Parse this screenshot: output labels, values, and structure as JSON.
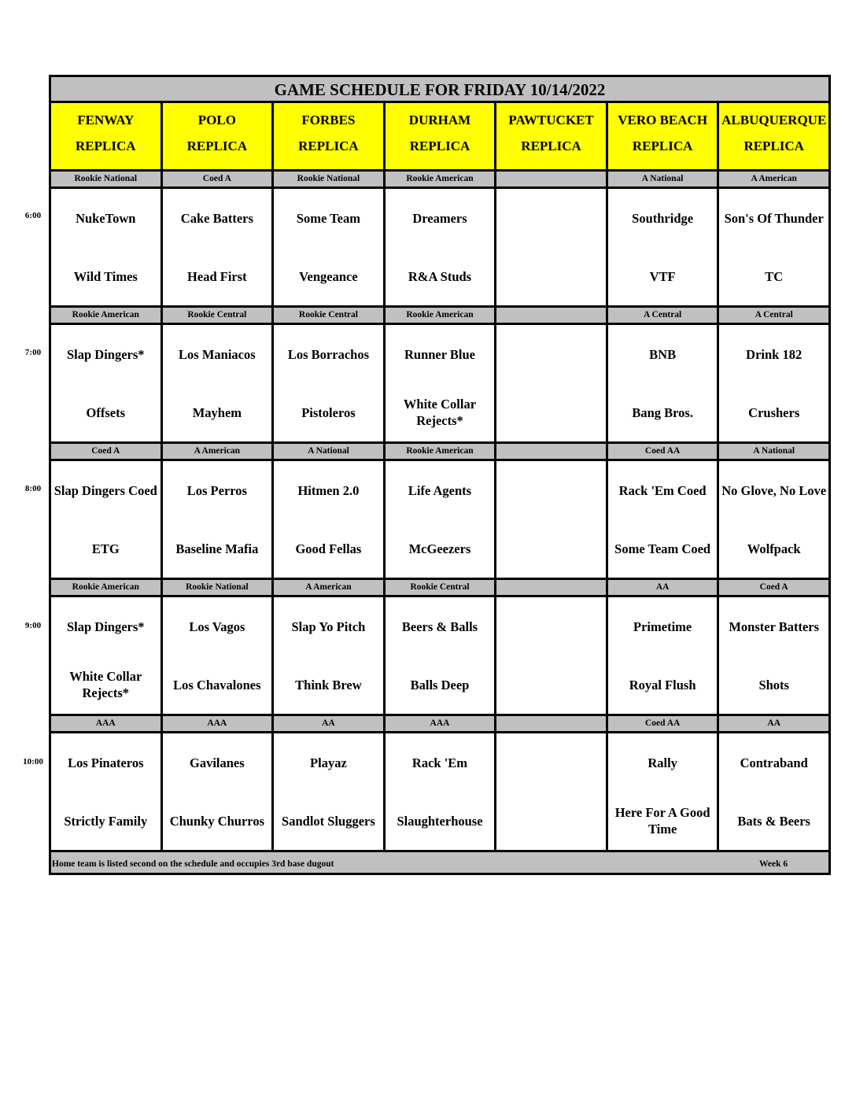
{
  "title": "GAME SCHEDULE FOR FRIDAY 10/14/2022",
  "fields": [
    {
      "name": "FENWAY",
      "sub": "REPLICA"
    },
    {
      "name": "POLO",
      "sub": "REPLICA"
    },
    {
      "name": "FORBES",
      "sub": "REPLICA"
    },
    {
      "name": "DURHAM",
      "sub": "REPLICA"
    },
    {
      "name": "PAWTUCKET",
      "sub": "REPLICA"
    },
    {
      "name": "VERO BEACH",
      "sub": "REPLICA"
    },
    {
      "name": "ALBUQUERQUE",
      "sub": "REPLICA"
    }
  ],
  "slots": [
    {
      "time": "6:00",
      "divisions": [
        "Rookie National",
        "Coed A",
        "Rookie National",
        "Rookie American",
        "",
        "A National",
        "A American"
      ],
      "games": [
        [
          "NukeTown",
          "Wild Times"
        ],
        [
          "Cake Batters",
          "Head First"
        ],
        [
          "Some Team",
          "Vengeance"
        ],
        [
          "Dreamers",
          "R&A Studs"
        ],
        [
          "",
          ""
        ],
        [
          "Southridge",
          "VTF"
        ],
        [
          "Son's Of Thunder",
          "TC"
        ]
      ]
    },
    {
      "time": "7:00",
      "divisions": [
        "Rookie American",
        "Rookie Central",
        "Rookie Central",
        "Rookie American",
        "",
        "A Central",
        "A Central"
      ],
      "games": [
        [
          "Slap Dingers*",
          "Offsets"
        ],
        [
          "Los Maniacos",
          "Mayhem"
        ],
        [
          "Los Borrachos",
          "Pistoleros"
        ],
        [
          "Runner Blue",
          "White Collar Rejects*"
        ],
        [
          "",
          ""
        ],
        [
          "BNB",
          "Bang Bros."
        ],
        [
          "Drink 182",
          "Crushers"
        ]
      ]
    },
    {
      "time": "8:00",
      "divisions": [
        "Coed A",
        "A American",
        "A National",
        "Rookie American",
        "",
        "Coed AA",
        "A National"
      ],
      "games": [
        [
          "Slap Dingers Coed",
          "ETG"
        ],
        [
          "Los Perros",
          "Baseline Mafia"
        ],
        [
          "Hitmen 2.0",
          "Good Fellas"
        ],
        [
          "Life Agents",
          "McGeezers"
        ],
        [
          "",
          ""
        ],
        [
          "Rack 'Em Coed",
          "Some Team Coed"
        ],
        [
          "No Glove, No Love",
          "Wolfpack"
        ]
      ]
    },
    {
      "time": "9:00",
      "divisions": [
        "Rookie American",
        "Rookie National",
        "A American",
        "Rookie Central",
        "",
        "AA",
        "Coed A"
      ],
      "games": [
        [
          "Slap Dingers*",
          "White Collar Rejects*"
        ],
        [
          "Los Vagos",
          "Los Chavalones"
        ],
        [
          "Slap Yo Pitch",
          "Think Brew"
        ],
        [
          "Beers & Balls",
          "Balls Deep"
        ],
        [
          "",
          ""
        ],
        [
          "Primetime",
          "Royal Flush"
        ],
        [
          "Monster Batters",
          "Shots"
        ]
      ]
    },
    {
      "time": "10:00",
      "divisions": [
        "AAA",
        "AAA",
        "AA",
        "AAA",
        "",
        "Coed AA",
        "AA"
      ],
      "games": [
        [
          "Los Pinateros",
          "Strictly Family"
        ],
        [
          "Gavilanes",
          "Chunky Churros"
        ],
        [
          "Playaz",
          "Sandlot Sluggers"
        ],
        [
          "Rack 'Em",
          "Slaughterhouse"
        ],
        [
          "",
          ""
        ],
        [
          "Rally",
          "Here For A Good Time"
        ],
        [
          "Contraband",
          "Bats & Beers"
        ]
      ]
    }
  ],
  "footer": {
    "note": "Home team is listed second on the schedule and occupies 3rd base dugout",
    "week": "Week 6"
  }
}
